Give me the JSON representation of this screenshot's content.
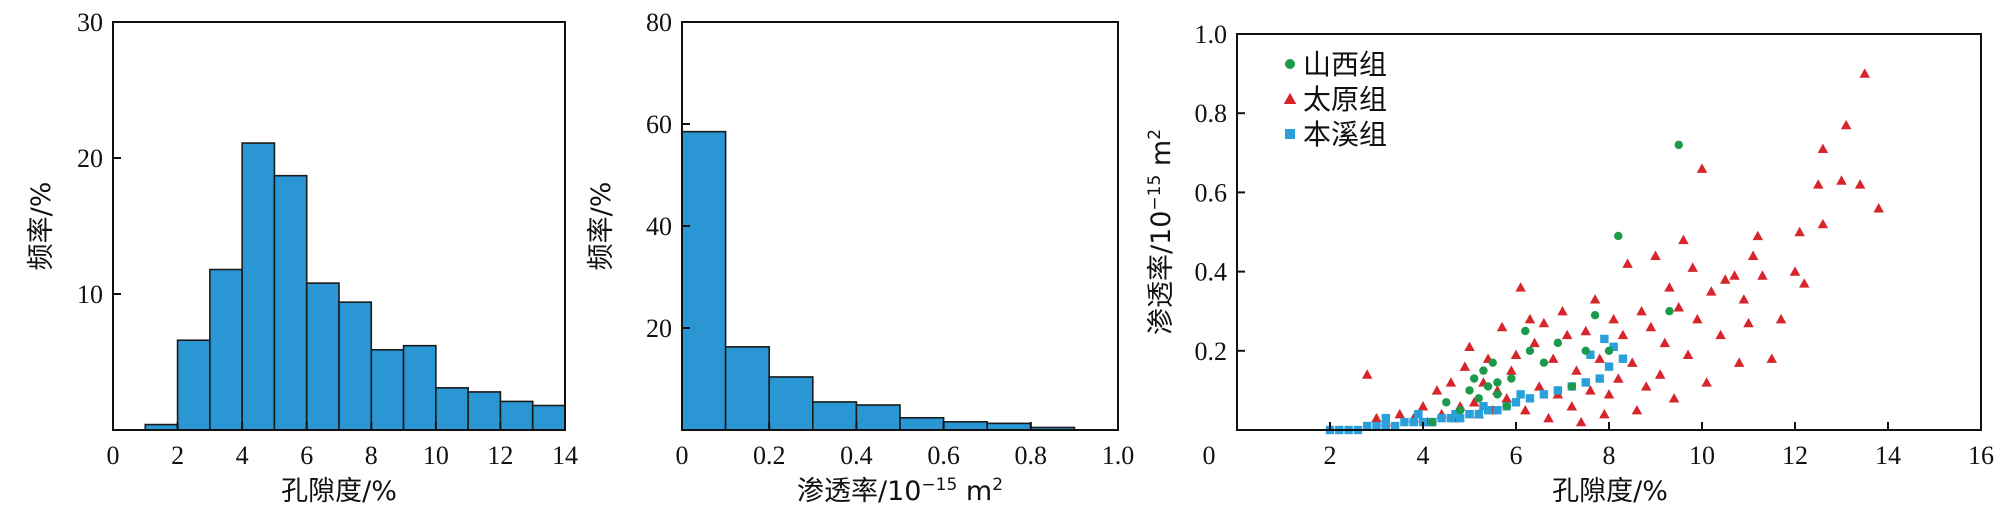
{
  "colors": {
    "bar": "#2a96d4",
    "shanxi": "#1a9a4a",
    "taiyuan": "#d7262b",
    "benxi": "#2aa0db"
  },
  "chart_data": [
    {
      "type": "bar",
      "bin_edges": [
        1,
        2,
        3,
        4,
        5,
        6,
        7,
        8,
        9,
        10,
        11,
        12,
        13,
        14
      ],
      "values": [
        0.4,
        6.6,
        11.8,
        21.1,
        18.7,
        10.8,
        9.4,
        5.9,
        6.2,
        3.1,
        2.8,
        2.1,
        1.8
      ],
      "xlabel": "孔隙度/%",
      "ylabel": "频率/%",
      "xlim": [
        0,
        14
      ],
      "ylim": [
        0,
        30
      ],
      "xticks": [
        "0",
        "2",
        "4",
        "6",
        "8",
        "10",
        "12",
        "14"
      ],
      "yticks": [
        "0",
        "10",
        "20",
        "30"
      ]
    },
    {
      "type": "bar",
      "bin_edges": [
        0,
        0.1,
        0.2,
        0.3,
        0.4,
        0.5,
        0.6,
        0.7,
        0.8,
        0.9
      ],
      "values": [
        58.5,
        16.3,
        10.4,
        5.5,
        4.9,
        2.4,
        1.6,
        1.3,
        0.5
      ],
      "xlabel_main": "渗透率/10",
      "xlabel_exp": "−15",
      "xlabel_unit": " m",
      "xlabel_unit_exp": "2",
      "ylabel": "频率/%",
      "xlim": [
        0,
        1.0
      ],
      "ylim": [
        0,
        80
      ],
      "xticks": [
        "0",
        "0.2",
        "0.4",
        "0.6",
        "0.8",
        "1.0"
      ],
      "yticks": [
        "0",
        "20",
        "40",
        "60",
        "80"
      ]
    },
    {
      "type": "scatter",
      "xlabel": "孔隙度/%",
      "ylabel_main": "渗透率/10",
      "ylabel_exp": "−15",
      "ylabel_unit": " m",
      "ylabel_unit_exp": "2",
      "xlim": [
        0,
        16
      ],
      "ylim": [
        0,
        1.0
      ],
      "xticks": [
        "0",
        "2",
        "4",
        "6",
        "8",
        "10",
        "12",
        "14",
        "16"
      ],
      "yticks": [
        "0.2",
        "0.4",
        "0.6",
        "0.8",
        "1.0"
      ],
      "origin_label": "0",
      "legend_position": "top-left",
      "series": [
        {
          "name": "山西组",
          "marker": "circle",
          "points": [
            [
              4.2,
              0.02
            ],
            [
              4.5,
              0.07
            ],
            [
              4.8,
              0.05
            ],
            [
              5.0,
              0.1
            ],
            [
              5.1,
              0.13
            ],
            [
              5.2,
              0.08
            ],
            [
              5.3,
              0.15
            ],
            [
              5.4,
              0.11
            ],
            [
              5.5,
              0.17
            ],
            [
              5.6,
              0.12
            ],
            [
              5.6,
              0.09
            ],
            [
              5.8,
              0.06
            ],
            [
              5.9,
              0.13
            ],
            [
              6.2,
              0.25
            ],
            [
              6.3,
              0.2
            ],
            [
              6.6,
              0.17
            ],
            [
              6.9,
              0.22
            ],
            [
              7.2,
              0.11
            ],
            [
              7.5,
              0.2
            ],
            [
              7.7,
              0.29
            ],
            [
              8.0,
              0.2
            ],
            [
              8.2,
              0.49
            ],
            [
              9.3,
              0.3
            ],
            [
              9.5,
              0.72
            ]
          ]
        },
        {
          "name": "太原组",
          "marker": "triangle",
          "points": [
            [
              2.8,
              0.14
            ],
            [
              3.0,
              0.03
            ],
            [
              3.2,
              0.02
            ],
            [
              3.5,
              0.04
            ],
            [
              3.8,
              0.03
            ],
            [
              4.0,
              0.06
            ],
            [
              4.1,
              0.02
            ],
            [
              4.3,
              0.1
            ],
            [
              4.4,
              0.04
            ],
            [
              4.6,
              0.12
            ],
            [
              4.7,
              0.03
            ],
            [
              4.8,
              0.06
            ],
            [
              4.9,
              0.16
            ],
            [
              5.0,
              0.21
            ],
            [
              5.1,
              0.07
            ],
            [
              5.2,
              0.04
            ],
            [
              5.3,
              0.12
            ],
            [
              5.4,
              0.18
            ],
            [
              5.5,
              0.05
            ],
            [
              5.6,
              0.1
            ],
            [
              5.7,
              0.26
            ],
            [
              5.8,
              0.08
            ],
            [
              5.9,
              0.15
            ],
            [
              6.0,
              0.19
            ],
            [
              6.1,
              0.36
            ],
            [
              6.2,
              0.05
            ],
            [
              6.3,
              0.28
            ],
            [
              6.4,
              0.22
            ],
            [
              6.5,
              0.11
            ],
            [
              6.6,
              0.27
            ],
            [
              6.7,
              0.03
            ],
            [
              6.8,
              0.18
            ],
            [
              6.9,
              0.09
            ],
            [
              7.0,
              0.3
            ],
            [
              7.1,
              0.24
            ],
            [
              7.2,
              0.06
            ],
            [
              7.3,
              0.15
            ],
            [
              7.4,
              0.02
            ],
            [
              7.5,
              0.25
            ],
            [
              7.6,
              0.1
            ],
            [
              7.7,
              0.33
            ],
            [
              7.8,
              0.18
            ],
            [
              7.9,
              0.04
            ],
            [
              8.0,
              0.09
            ],
            [
              8.1,
              0.28
            ],
            [
              8.2,
              0.13
            ],
            [
              8.3,
              0.24
            ],
            [
              8.4,
              0.42
            ],
            [
              8.5,
              0.17
            ],
            [
              8.6,
              0.05
            ],
            [
              8.7,
              0.3
            ],
            [
              8.8,
              0.11
            ],
            [
              8.9,
              0.26
            ],
            [
              9.0,
              0.44
            ],
            [
              9.1,
              0.14
            ],
            [
              9.2,
              0.22
            ],
            [
              9.3,
              0.36
            ],
            [
              9.4,
              0.08
            ],
            [
              9.5,
              0.31
            ],
            [
              9.6,
              0.48
            ],
            [
              9.7,
              0.19
            ],
            [
              9.8,
              0.41
            ],
            [
              9.9,
              0.28
            ],
            [
              10.0,
              0.66
            ],
            [
              10.1,
              0.12
            ],
            [
              10.2,
              0.35
            ],
            [
              10.4,
              0.24
            ],
            [
              10.5,
              0.38
            ],
            [
              10.7,
              0.39
            ],
            [
              10.8,
              0.17
            ],
            [
              10.9,
              0.33
            ],
            [
              11.0,
              0.27
            ],
            [
              11.1,
              0.44
            ],
            [
              11.2,
              0.49
            ],
            [
              11.3,
              0.39
            ],
            [
              11.5,
              0.18
            ],
            [
              11.7,
              0.28
            ],
            [
              12.0,
              0.4
            ],
            [
              12.1,
              0.5
            ],
            [
              12.2,
              0.37
            ],
            [
              12.5,
              0.62
            ],
            [
              12.6,
              0.52
            ],
            [
              12.6,
              0.71
            ],
            [
              13.0,
              0.63
            ],
            [
              13.1,
              0.77
            ],
            [
              13.4,
              0.62
            ],
            [
              13.5,
              0.9
            ],
            [
              13.8,
              0.56
            ]
          ]
        },
        {
          "name": "本溪组",
          "marker": "square",
          "points": [
            [
              2.0,
              0.0
            ],
            [
              2.2,
              0.0
            ],
            [
              2.4,
              0.0
            ],
            [
              2.6,
              0.0
            ],
            [
              2.8,
              0.01
            ],
            [
              3.0,
              0.01
            ],
            [
              3.2,
              0.01
            ],
            [
              3.4,
              0.01
            ],
            [
              3.6,
              0.02
            ],
            [
              3.8,
              0.02
            ],
            [
              4.0,
              0.02
            ],
            [
              4.2,
              0.02
            ],
            [
              4.4,
              0.03
            ],
            [
              4.6,
              0.03
            ],
            [
              4.8,
              0.03
            ],
            [
              5.0,
              0.04
            ],
            [
              5.2,
              0.04
            ],
            [
              5.4,
              0.05
            ],
            [
              5.6,
              0.05
            ],
            [
              5.8,
              0.06
            ],
            [
              6.0,
              0.07
            ],
            [
              6.3,
              0.08
            ],
            [
              6.6,
              0.09
            ],
            [
              6.9,
              0.1
            ],
            [
              7.2,
              0.11
            ],
            [
              7.5,
              0.12
            ],
            [
              7.8,
              0.13
            ],
            [
              8.0,
              0.16
            ],
            [
              8.3,
              0.18
            ],
            [
              7.6,
              0.19
            ],
            [
              7.9,
              0.23
            ],
            [
              8.1,
              0.21
            ],
            [
              3.2,
              0.03
            ],
            [
              3.9,
              0.04
            ],
            [
              4.7,
              0.04
            ],
            [
              5.3,
              0.06
            ],
            [
              6.1,
              0.09
            ]
          ]
        }
      ]
    }
  ]
}
